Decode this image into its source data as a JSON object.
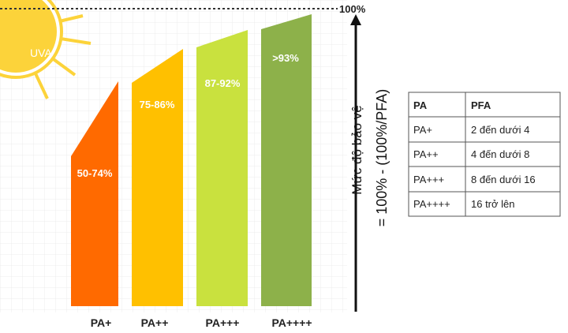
{
  "sun_label": "UVA",
  "top_label": "100%",
  "axis_label": {
    "line1": "Mức độ bảo vệ",
    "line2": "= 100% - (100%/PFA)"
  },
  "bars": [
    {
      "label": "50-74%",
      "category": "PA+"
    },
    {
      "label": "75-86%",
      "category": "PA++"
    },
    {
      "label": "87-92%",
      "category": "PA+++"
    },
    {
      "label": ">93%",
      "category": "PA++++"
    }
  ],
  "table": {
    "header": [
      "PA",
      "PFA"
    ],
    "rows": [
      [
        "PA+",
        "2 đến dưới 4"
      ],
      [
        "PA++",
        "4 đến dưới 8"
      ],
      [
        "PA+++",
        "8 đến dưới 16"
      ],
      [
        "PA++++",
        "16 trở lên"
      ]
    ]
  }
}
